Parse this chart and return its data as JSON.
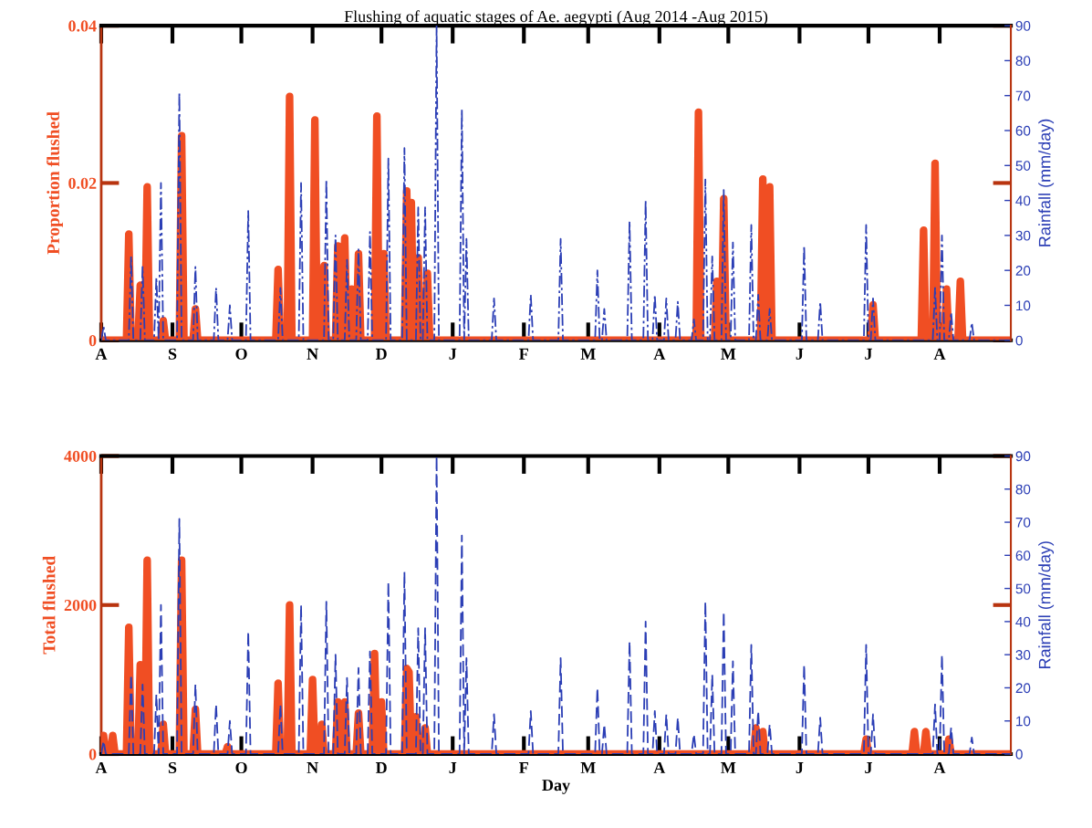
{
  "chart_data": [
    {
      "type": "line",
      "title": "Flushing of aquatic stages of Ae. aegypti (Aug 2014 -Aug 2015)",
      "ylabel": "Proportion flushed",
      "y2label": "Rainfall (mm/day)",
      "categories": [
        "A",
        null,
        null,
        null,
        null,
        null,
        null,
        null,
        null,
        null,
        null,
        null,
        null,
        null,
        null,
        null,
        null,
        null,
        null,
        null,
        null,
        null,
        null,
        null,
        null,
        null,
        null,
        null,
        null,
        null,
        null,
        "S",
        null,
        null,
        null,
        null,
        null,
        null,
        null,
        null,
        null,
        null,
        null,
        null,
        null,
        null,
        null,
        null,
        null,
        null,
        null,
        null,
        null,
        null,
        null,
        null,
        null,
        null,
        null,
        null,
        null,
        "O",
        null,
        null,
        null,
        null,
        null,
        null,
        null,
        null,
        null,
        null,
        null,
        null,
        null,
        null,
        null,
        null,
        null,
        null,
        null,
        null,
        null,
        null,
        null,
        null,
        null,
        null,
        null,
        null,
        null,
        null,
        "N",
        null,
        null,
        null,
        null,
        null,
        null,
        null,
        null,
        null,
        null,
        null,
        null,
        null,
        null,
        null,
        null,
        null,
        null,
        null,
        null,
        null,
        null,
        null,
        null,
        null,
        null,
        null,
        null,
        null,
        "D",
        null,
        null,
        null,
        null,
        null,
        null,
        null,
        null,
        null,
        null,
        null,
        null,
        null,
        null,
        null,
        null,
        null,
        null,
        null,
        null,
        null,
        null,
        null,
        null,
        null,
        null,
        null,
        null,
        null,
        null,
        "J",
        null,
        null,
        null,
        null,
        null,
        null,
        null,
        null,
        null,
        null,
        null,
        null,
        null,
        null,
        null,
        null,
        null,
        null,
        null,
        null,
        null,
        null,
        null,
        null,
        null,
        null,
        null,
        null,
        null,
        null,
        "F",
        null,
        null,
        null,
        null,
        null,
        null,
        null,
        null,
        null,
        null,
        null,
        null,
        null,
        null,
        null,
        null,
        null,
        null,
        null,
        null,
        null,
        null,
        null,
        null,
        null,
        null,
        null,
        "M",
        null,
        null,
        null,
        null,
        null,
        null,
        null,
        null,
        null,
        null,
        null,
        null,
        null,
        null,
        null,
        null,
        null,
        null,
        null,
        null,
        null,
        null,
        null,
        null,
        null,
        null,
        null,
        null,
        null,
        null,
        "A",
        null,
        null,
        null,
        null,
        null,
        null,
        null,
        null,
        null,
        null,
        null,
        null,
        null,
        null,
        null,
        null,
        null,
        null,
        null,
        null,
        null,
        null,
        null,
        null,
        null,
        null,
        null,
        null,
        null,
        "M",
        null,
        null,
        null,
        null,
        null,
        null,
        null,
        null,
        null,
        null,
        null,
        null,
        null,
        null,
        null,
        null,
        null,
        null,
        null,
        null,
        null,
        null,
        null,
        null,
        null,
        null,
        null,
        null,
        null,
        null,
        "J",
        null,
        null,
        null,
        null,
        null,
        null,
        null,
        null,
        null,
        null,
        null,
        null,
        null,
        null,
        null,
        null,
        null,
        null,
        null,
        null,
        null,
        null,
        null,
        null,
        null,
        null,
        null,
        null,
        null,
        "J",
        null,
        null,
        null,
        null,
        null,
        null,
        null,
        null,
        null,
        null,
        null,
        null,
        null,
        null,
        null,
        null,
        null,
        null,
        null,
        null,
        null,
        null,
        null,
        null,
        null,
        null,
        null,
        null,
        null,
        null,
        "A",
        null,
        null,
        null,
        null,
        null,
        null,
        null,
        null,
        null,
        null,
        null,
        null,
        null,
        null,
        null,
        null,
        null,
        null,
        null,
        null,
        null,
        null,
        null,
        null,
        null,
        null,
        null,
        null,
        null,
        null,
        null
      ],
      "ylim": [
        0,
        0.04
      ],
      "yticks": [
        0,
        0.02,
        0.04
      ],
      "y2lim": [
        0,
        90
      ],
      "y2ticks": [
        0,
        10,
        20,
        30,
        40,
        50,
        60,
        70,
        80,
        90
      ],
      "series": [
        {
          "color": "#f04e23",
          "line_style": "solid",
          "values": [
            0,
            0,
            0,
            0,
            0,
            0,
            0,
            0,
            0,
            0,
            0,
            0,
            0.0135,
            0,
            0,
            0,
            0,
            0.007,
            0,
            0,
            0.0195,
            0,
            0,
            0,
            0,
            0,
            0,
            0.0025,
            0,
            0,
            0,
            0,
            0,
            0,
            0,
            0.026,
            0,
            0,
            0,
            0,
            0,
            0.004,
            0,
            0,
            0,
            0,
            0,
            0,
            0,
            0,
            0,
            0,
            0,
            0,
            0,
            0,
            0,
            0,
            0,
            0,
            0,
            0,
            0,
            0,
            0,
            0,
            0,
            0,
            0,
            0,
            0,
            0,
            0,
            0,
            0,
            0,
            0,
            0.009,
            0,
            0,
            0,
            0,
            0.031,
            0,
            0,
            0,
            0,
            0,
            0,
            0,
            0,
            0,
            0,
            0.028,
            0,
            0,
            0,
            0.0095,
            0,
            0,
            0,
            0,
            0,
            0.012,
            0,
            0,
            0.013,
            0,
            0,
            0.0065,
            0,
            0,
            0.011,
            0,
            0,
            0,
            0,
            0,
            0,
            0,
            0.0285,
            0,
            0,
            0.011,
            0,
            0,
            0,
            0,
            0,
            0,
            0,
            0,
            0,
            0.019,
            0,
            0.0175,
            0,
            0,
            0.0105,
            0,
            0,
            0,
            0.0085,
            0,
            0,
            0,
            0,
            0,
            0,
            0,
            0,
            0,
            0,
            0,
            0,
            0,
            0,
            0,
            0,
            0,
            0,
            0,
            0,
            0,
            0,
            0,
            0,
            0,
            0,
            0,
            0,
            0,
            0,
            0,
            0,
            0,
            0,
            0,
            0,
            0,
            0,
            0,
            0,
            0,
            0,
            0,
            0,
            0,
            0,
            0,
            0,
            0,
            0,
            0,
            0,
            0,
            0,
            0,
            0,
            0,
            0,
            0,
            0,
            0,
            0,
            0,
            0,
            0,
            0,
            0,
            0,
            0,
            0,
            0,
            0,
            0,
            0,
            0,
            0,
            0,
            0,
            0,
            0,
            0,
            0,
            0,
            0,
            0,
            0,
            0,
            0,
            0,
            0,
            0,
            0,
            0,
            0,
            0,
            0,
            0,
            0,
            0,
            0,
            0,
            0,
            0,
            0,
            0,
            0,
            0,
            0,
            0,
            0,
            0,
            0,
            0,
            0,
            0,
            0,
            0,
            0.029,
            0,
            0,
            0,
            0,
            0,
            0,
            0,
            0.0075,
            0,
            0,
            0.018,
            0,
            0,
            0,
            0,
            0,
            0,
            0,
            0,
            0,
            0,
            0,
            0,
            0,
            0,
            0,
            0,
            0.0205,
            0,
            0,
            0.0195,
            0,
            0,
            0,
            0,
            0,
            0,
            0,
            0,
            0,
            0,
            0,
            0,
            0,
            0,
            0,
            0,
            0,
            0,
            0,
            0,
            0,
            0,
            0,
            0,
            0,
            0,
            0,
            0,
            0,
            0,
            0,
            0,
            0,
            0,
            0,
            0,
            0,
            0,
            0,
            0,
            0,
            0,
            0,
            0,
            0.0045,
            0,
            0,
            0,
            0,
            0,
            0,
            0,
            0,
            0,
            0,
            0,
            0,
            0,
            0,
            0,
            0,
            0,
            0,
            0,
            0,
            0,
            0.014,
            0,
            0,
            0,
            0,
            0.0225,
            0,
            0,
            0,
            0,
            0.0065,
            0,
            0,
            0,
            0,
            0,
            0.0075,
            0,
            0,
            0,
            0,
            0,
            0,
            0,
            0,
            0,
            0,
            0,
            0,
            0,
            0,
            0,
            0,
            0,
            0,
            0,
            0,
            0,
            0
          ]
        },
        {
          "color": "#2b3eb5",
          "axis": "y2",
          "line_style": "dashdot",
          "values": [
            0,
            4,
            0,
            0,
            0,
            0,
            0,
            0,
            0,
            0,
            0,
            0,
            0,
            24,
            0,
            0,
            0,
            0,
            21,
            0,
            0,
            0,
            0,
            0,
            18,
            0,
            45,
            0,
            0,
            0,
            0,
            0,
            0,
            0,
            71,
            0,
            0,
            0,
            0,
            0,
            0,
            21,
            0,
            0,
            0,
            0,
            0,
            0,
            0,
            0,
            15,
            0,
            0,
            0,
            0,
            0,
            10,
            0,
            0,
            0,
            0,
            0,
            0,
            0,
            37,
            0,
            0,
            0,
            0,
            0,
            0,
            0,
            0,
            0,
            0,
            0,
            0,
            0,
            15,
            0,
            0,
            0,
            0,
            0,
            0,
            0,
            0,
            45,
            0,
            0,
            0,
            0,
            0,
            0,
            0,
            0,
            0,
            0,
            46,
            0,
            0,
            0,
            30,
            0,
            0,
            0,
            0,
            23,
            0,
            0,
            0,
            0,
            26,
            0,
            0,
            0,
            0,
            31,
            0,
            0,
            0,
            0,
            0,
            0,
            0,
            52,
            0,
            0,
            0,
            0,
            0,
            0,
            55,
            0,
            0,
            0,
            0,
            0,
            38,
            0,
            0,
            38,
            0,
            0,
            0,
            0,
            90,
            0,
            0,
            0,
            0,
            0,
            0,
            0,
            0,
            0,
            0,
            66,
            0,
            29,
            0,
            0,
            0,
            0,
            0,
            0,
            0,
            0,
            0,
            0,
            0,
            12,
            0,
            0,
            0,
            0,
            0,
            0,
            0,
            0,
            0,
            0,
            0,
            0,
            0,
            0,
            0,
            13,
            0,
            0,
            0,
            0,
            0,
            0,
            0,
            0,
            0,
            0,
            0,
            0,
            29,
            0,
            0,
            0,
            0,
            0,
            0,
            0,
            0,
            0,
            0,
            0,
            0,
            0,
            0,
            0,
            20,
            0,
            0,
            9,
            0,
            0,
            0,
            0,
            0,
            0,
            0,
            0,
            0,
            0,
            34,
            0,
            0,
            0,
            0,
            0,
            0,
            40,
            0,
            0,
            0,
            13,
            0,
            0,
            0,
            0,
            12,
            0,
            0,
            0,
            0,
            11,
            0,
            0,
            0,
            0,
            0,
            0,
            6,
            0,
            0,
            0,
            0,
            46,
            0,
            0,
            24,
            0,
            0,
            0,
            0,
            43,
            0,
            0,
            0,
            28,
            0,
            0,
            0,
            0,
            0,
            0,
            0,
            33,
            0,
            0,
            13,
            0,
            0,
            0,
            0,
            9,
            0,
            0,
            0,
            0,
            0,
            0,
            0,
            0,
            0,
            0,
            0,
            0,
            0,
            0,
            27,
            0,
            0,
            0,
            0,
            0,
            0,
            11,
            0,
            0,
            0,
            0,
            0,
            0,
            0,
            0,
            0,
            0,
            0,
            0,
            0,
            0,
            0,
            0,
            0,
            0,
            0,
            33,
            0,
            0,
            12,
            0,
            0,
            0,
            0,
            0,
            0,
            0,
            0,
            0,
            0,
            0,
            0,
            0,
            0,
            0,
            0,
            0,
            0,
            0,
            0,
            0,
            0,
            0,
            0,
            0,
            0,
            15,
            0,
            0,
            30,
            0,
            0,
            0,
            8,
            0,
            0,
            0,
            0,
            0,
            0,
            0,
            0,
            5,
            0,
            0,
            0,
            0,
            0,
            0,
            0,
            0,
            0,
            0,
            0,
            0,
            0,
            0,
            0,
            0,
            0
          ]
        }
      ]
    },
    {
      "type": "line",
      "xlabel": "Day",
      "ylabel": "Total flushed",
      "y2label": "Rainfall (mm/day)",
      "categories": [
        "A",
        null,
        null,
        null,
        null,
        null,
        null,
        null,
        null,
        null,
        null,
        null,
        null,
        null,
        null,
        null,
        null,
        null,
        null,
        null,
        null,
        null,
        null,
        null,
        null,
        null,
        null,
        null,
        null,
        null,
        null,
        "S",
        null,
        null,
        null,
        null,
        null,
        null,
        null,
        null,
        null,
        null,
        null,
        null,
        null,
        null,
        null,
        null,
        null,
        null,
        null,
        null,
        null,
        null,
        null,
        null,
        null,
        null,
        null,
        null,
        null,
        "O",
        null,
        null,
        null,
        null,
        null,
        null,
        null,
        null,
        null,
        null,
        null,
        null,
        null,
        null,
        null,
        null,
        null,
        null,
        null,
        null,
        null,
        null,
        null,
        null,
        null,
        null,
        null,
        null,
        null,
        null,
        "N",
        null,
        null,
        null,
        null,
        null,
        null,
        null,
        null,
        null,
        null,
        null,
        null,
        null,
        null,
        null,
        null,
        null,
        null,
        null,
        null,
        null,
        null,
        null,
        null,
        null,
        null,
        null,
        null,
        null,
        "D",
        null,
        null,
        null,
        null,
        null,
        null,
        null,
        null,
        null,
        null,
        null,
        null,
        null,
        null,
        null,
        null,
        null,
        null,
        null,
        null,
        null,
        null,
        null,
        null,
        null,
        null,
        null,
        null,
        null,
        null,
        "J",
        null,
        null,
        null,
        null,
        null,
        null,
        null,
        null,
        null,
        null,
        null,
        null,
        null,
        null,
        null,
        null,
        null,
        null,
        null,
        null,
        null,
        null,
        null,
        null,
        null,
        null,
        null,
        null,
        null,
        null,
        "F",
        null,
        null,
        null,
        null,
        null,
        null,
        null,
        null,
        null,
        null,
        null,
        null,
        null,
        null,
        null,
        null,
        null,
        null,
        null,
        null,
        null,
        null,
        null,
        null,
        null,
        null,
        null,
        "M",
        null,
        null,
        null,
        null,
        null,
        null,
        null,
        null,
        null,
        null,
        null,
        null,
        null,
        null,
        null,
        null,
        null,
        null,
        null,
        null,
        null,
        null,
        null,
        null,
        null,
        null,
        null,
        null,
        null,
        null,
        "A",
        null,
        null,
        null,
        null,
        null,
        null,
        null,
        null,
        null,
        null,
        null,
        null,
        null,
        null,
        null,
        null,
        null,
        null,
        null,
        null,
        null,
        null,
        null,
        null,
        null,
        null,
        null,
        null,
        null,
        "M",
        null,
        null,
        null,
        null,
        null,
        null,
        null,
        null,
        null,
        null,
        null,
        null,
        null,
        null,
        null,
        null,
        null,
        null,
        null,
        null,
        null,
        null,
        null,
        null,
        null,
        null,
        null,
        null,
        null,
        null,
        "J",
        null,
        null,
        null,
        null,
        null,
        null,
        null,
        null,
        null,
        null,
        null,
        null,
        null,
        null,
        null,
        null,
        null,
        null,
        null,
        null,
        null,
        null,
        null,
        null,
        null,
        null,
        null,
        null,
        null,
        "J",
        null,
        null,
        null,
        null,
        null,
        null,
        null,
        null,
        null,
        null,
        null,
        null,
        null,
        null,
        null,
        null,
        null,
        null,
        null,
        null,
        null,
        null,
        null,
        null,
        null,
        null,
        null,
        null,
        null,
        null,
        "A",
        null,
        null,
        null,
        null,
        null,
        null,
        null,
        null,
        null,
        null,
        null,
        null,
        null,
        null,
        null,
        null,
        null,
        null,
        null,
        null,
        null,
        null,
        null,
        null,
        null,
        null,
        null,
        null,
        null,
        null,
        null
      ],
      "ylim": [
        0,
        4000
      ],
      "yticks": [
        0,
        2000,
        4000
      ],
      "y2lim": [
        0,
        90
      ],
      "y2ticks": [
        0,
        10,
        20,
        30,
        40,
        50,
        60,
        70,
        80,
        90
      ],
      "series": [
        {
          "color": "#f04e23",
          "line_style": "solid",
          "values": [
            0,
            250,
            0,
            0,
            0,
            250,
            0,
            0,
            0,
            0,
            0,
            0,
            1700,
            0,
            0,
            0,
            0,
            1200,
            0,
            0,
            2600,
            0,
            0,
            0,
            0,
            0,
            0,
            400,
            0,
            0,
            0,
            0,
            0,
            0,
            0,
            2600,
            0,
            0,
            0,
            0,
            0,
            600,
            0,
            0,
            0,
            0,
            0,
            0,
            0,
            0,
            0,
            0,
            0,
            0,
            0,
            100,
            0,
            0,
            0,
            0,
            0,
            0,
            0,
            0,
            0,
            0,
            0,
            0,
            0,
            0,
            0,
            0,
            0,
            0,
            0,
            0,
            0,
            950,
            0,
            0,
            0,
            0,
            2000,
            0,
            0,
            0,
            0,
            0,
            0,
            0,
            0,
            0,
            1000,
            0,
            0,
            0,
            400,
            0,
            0,
            0,
            0,
            0,
            0,
            700,
            0,
            0,
            700,
            0,
            0,
            0,
            0,
            0,
            550,
            0,
            0,
            0,
            0,
            0,
            0,
            1350,
            0,
            0,
            700,
            0,
            0,
            0,
            0,
            0,
            0,
            0,
            0,
            0,
            0,
            1150,
            1100,
            0,
            0,
            500,
            0,
            0,
            0,
            350,
            0,
            0,
            0,
            0,
            0,
            0,
            0,
            0,
            0,
            0,
            0,
            0,
            0,
            0,
            0,
            0,
            0,
            0,
            0,
            0,
            0,
            0,
            0,
            0,
            0,
            0,
            0,
            0,
            0,
            0,
            0,
            0,
            0,
            0,
            0,
            0,
            0,
            0,
            0,
            0,
            0,
            0,
            0,
            0,
            0,
            0,
            0,
            0,
            0,
            0,
            0,
            0,
            0,
            0,
            0,
            0,
            0,
            0,
            0,
            0,
            0,
            0,
            0,
            0,
            0,
            0,
            0,
            0,
            0,
            0,
            0,
            0,
            0,
            0,
            0,
            0,
            0,
            0,
            0,
            0,
            0,
            0,
            0,
            0,
            0,
            0,
            0,
            0,
            0,
            0,
            0,
            0,
            0,
            0,
            0,
            0,
            0,
            0,
            0,
            0,
            0,
            0,
            0,
            0,
            0,
            0,
            0,
            0,
            0,
            0,
            0,
            0,
            0,
            0,
            0,
            0,
            0,
            0,
            0,
            0,
            0,
            0,
            0,
            0,
            0,
            0,
            0,
            0,
            0,
            0,
            0,
            0,
            0,
            0,
            0,
            0,
            0,
            0,
            0,
            0,
            0,
            0,
            0,
            350,
            0,
            0,
            300,
            0,
            0,
            0,
            0,
            0,
            0,
            0,
            0,
            0,
            0,
            0,
            0,
            0,
            0,
            0,
            0,
            0,
            0,
            0,
            0,
            0,
            0,
            0,
            0,
            0,
            0,
            0,
            0,
            0,
            0,
            0,
            0,
            0,
            0,
            0,
            0,
            0,
            0,
            0,
            0,
            0,
            0,
            0,
            0,
            200,
            0,
            0,
            0,
            0,
            0,
            0,
            0,
            0,
            0,
            0,
            0,
            0,
            0,
            0,
            0,
            0,
            0,
            0,
            0,
            0,
            300,
            0,
            0,
            0,
            0,
            300,
            0,
            0,
            0,
            0,
            0,
            0,
            0,
            0,
            0,
            200,
            0,
            0,
            0,
            0,
            0,
            0,
            0,
            0,
            0,
            0,
            0,
            0,
            0,
            0,
            0,
            0,
            0,
            0,
            0,
            0,
            0,
            0,
            0,
            0,
            0,
            0,
            0
          ]
        },
        {
          "color": "#2b3eb5",
          "axis": "y2",
          "line_style": "dashed",
          "values": [
            0,
            4,
            0,
            0,
            0,
            0,
            0,
            0,
            0,
            0,
            0,
            0,
            0,
            24,
            0,
            0,
            0,
            0,
            21,
            0,
            0,
            0,
            0,
            0,
            18,
            0,
            45,
            0,
            0,
            0,
            0,
            0,
            0,
            0,
            71,
            0,
            0,
            0,
            0,
            0,
            0,
            21,
            0,
            0,
            0,
            0,
            0,
            0,
            0,
            0,
            15,
            0,
            0,
            0,
            0,
            0,
            10,
            0,
            0,
            0,
            0,
            0,
            0,
            0,
            37,
            0,
            0,
            0,
            0,
            0,
            0,
            0,
            0,
            0,
            0,
            0,
            0,
            0,
            15,
            0,
            0,
            0,
            0,
            0,
            0,
            0,
            0,
            45,
            0,
            0,
            0,
            0,
            0,
            0,
            0,
            0,
            0,
            0,
            46,
            0,
            0,
            0,
            30,
            0,
            0,
            0,
            0,
            23,
            0,
            0,
            0,
            0,
            26,
            0,
            0,
            0,
            0,
            31,
            0,
            0,
            0,
            0,
            0,
            0,
            0,
            52,
            0,
            0,
            0,
            0,
            0,
            0,
            55,
            0,
            0,
            0,
            0,
            0,
            38,
            0,
            0,
            38,
            0,
            0,
            0,
            0,
            90,
            0,
            0,
            0,
            0,
            0,
            0,
            0,
            0,
            0,
            0,
            66,
            0,
            29,
            0,
            0,
            0,
            0,
            0,
            0,
            0,
            0,
            0,
            0,
            0,
            12,
            0,
            0,
            0,
            0,
            0,
            0,
            0,
            0,
            0,
            0,
            0,
            0,
            0,
            0,
            0,
            13,
            0,
            0,
            0,
            0,
            0,
            0,
            0,
            0,
            0,
            0,
            0,
            0,
            29,
            0,
            0,
            0,
            0,
            0,
            0,
            0,
            0,
            0,
            0,
            0,
            0,
            0,
            0,
            0,
            20,
            0,
            0,
            9,
            0,
            0,
            0,
            0,
            0,
            0,
            0,
            0,
            0,
            0,
            34,
            0,
            0,
            0,
            0,
            0,
            0,
            40,
            0,
            0,
            0,
            13,
            0,
            0,
            0,
            0,
            12,
            0,
            0,
            0,
            0,
            11,
            0,
            0,
            0,
            0,
            0,
            0,
            6,
            0,
            0,
            0,
            0,
            46,
            0,
            0,
            24,
            0,
            0,
            0,
            0,
            43,
            0,
            0,
            0,
            28,
            0,
            0,
            0,
            0,
            0,
            0,
            0,
            33,
            0,
            0,
            13,
            0,
            0,
            0,
            0,
            9,
            0,
            0,
            0,
            0,
            0,
            0,
            0,
            0,
            0,
            0,
            0,
            0,
            0,
            0,
            27,
            0,
            0,
            0,
            0,
            0,
            0,
            11,
            0,
            0,
            0,
            0,
            0,
            0,
            0,
            0,
            0,
            0,
            0,
            0,
            0,
            0,
            0,
            0,
            0,
            0,
            0,
            33,
            0,
            0,
            12,
            0,
            0,
            0,
            0,
            0,
            0,
            0,
            0,
            0,
            0,
            0,
            0,
            0,
            0,
            0,
            0,
            0,
            0,
            0,
            0,
            0,
            0,
            0,
            0,
            0,
            0,
            15,
            0,
            0,
            30,
            0,
            0,
            0,
            8,
            0,
            0,
            0,
            0,
            0,
            0,
            0,
            0,
            5,
            0,
            0,
            0,
            0,
            0,
            0,
            0,
            0,
            0,
            0,
            0,
            0,
            0,
            0,
            0,
            0,
            0
          ]
        }
      ]
    }
  ]
}
